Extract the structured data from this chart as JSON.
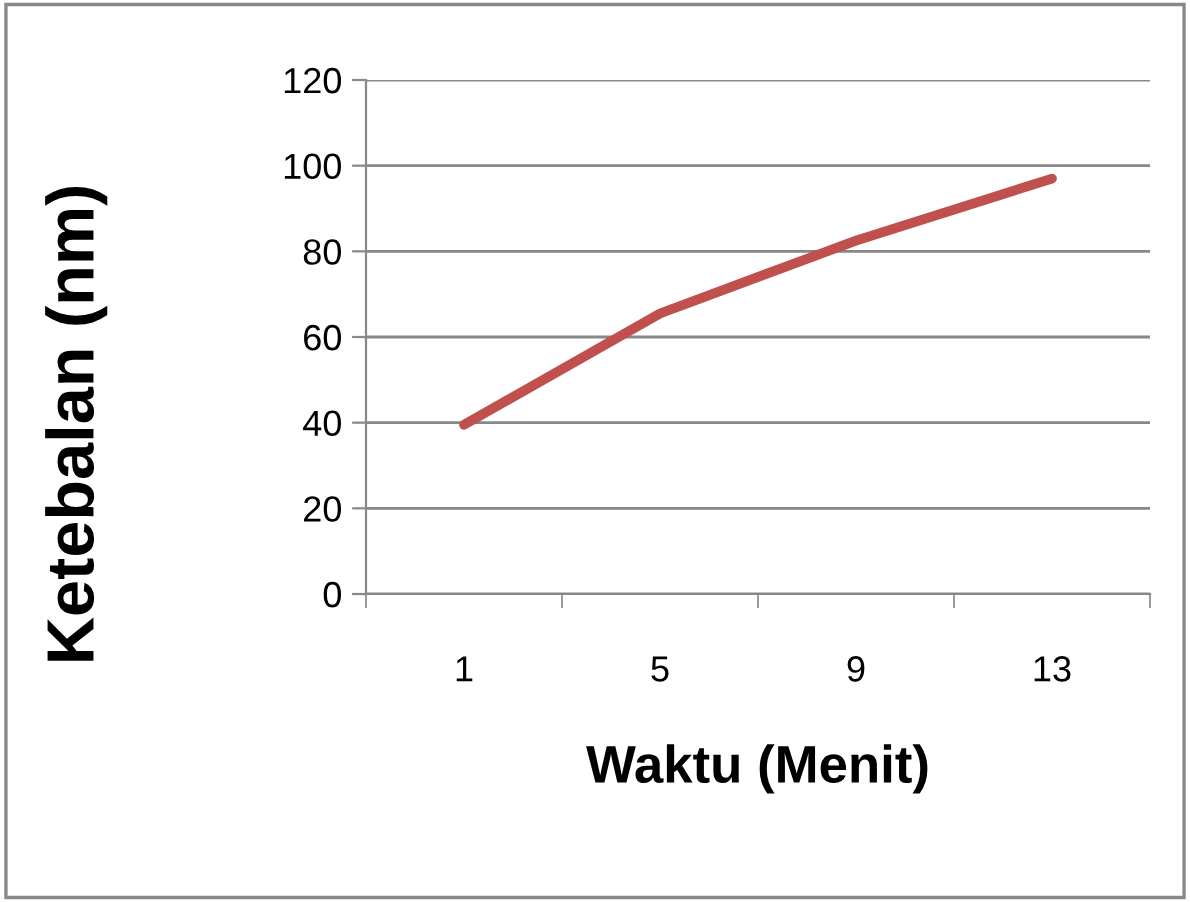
{
  "chart_data": {
    "type": "line",
    "xlabel": "Waktu (Menit)",
    "ylabel": "Ketebalan (nm)",
    "categories": [
      "1",
      "5",
      "9",
      "13"
    ],
    "series": [
      {
        "color": "#c0504d",
        "values": [
          39.5,
          65.5,
          82.5,
          97
        ]
      }
    ],
    "ylim": [
      0,
      120
    ],
    "yticks": [
      0,
      20,
      40,
      60,
      80,
      100,
      120
    ],
    "grid": "y",
    "marker": "none",
    "line_style": "solid"
  }
}
